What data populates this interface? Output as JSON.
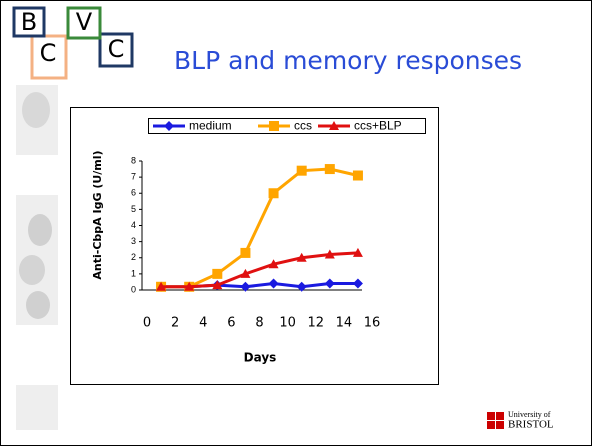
{
  "logo": {
    "letters": [
      "B",
      "C",
      "V",
      "C"
    ]
  },
  "footer": {
    "university_line1": "University of",
    "university_line2": "BRISTOL"
  },
  "chart_data": {
    "type": "line",
    "title": "BLP and memory responses",
    "x_label": "Days",
    "y_label": "Anti-CbpA IgG (U/ml)",
    "x": [
      1,
      3,
      5,
      7,
      9,
      11,
      13,
      15
    ],
    "series": [
      {
        "name": "medium",
        "color": "#1a1ae0",
        "marker": "diamond",
        "values": [
          0.2,
          0.2,
          0.3,
          0.2,
          0.4,
          0.2,
          0.4,
          0.4
        ]
      },
      {
        "name": "ccs",
        "color": "#ffa500",
        "marker": "square",
        "values": [
          0.2,
          0.2,
          1.0,
          2.3,
          6.0,
          7.4,
          7.5,
          7.1
        ]
      },
      {
        "name": "ccs+BLP",
        "color": "#e01010",
        "marker": "triangle",
        "values": [
          0.2,
          0.2,
          0.3,
          1.0,
          1.6,
          2.0,
          2.2,
          2.3
        ]
      }
    ],
    "xlim": [
      0,
      16
    ],
    "xticks": [
      0,
      2,
      4,
      6,
      8,
      10,
      12,
      14,
      16
    ],
    "ylim": [
      0,
      8
    ],
    "yticks": [
      0,
      1,
      2,
      3,
      4,
      5,
      6,
      7,
      8
    ],
    "legend": "top"
  }
}
